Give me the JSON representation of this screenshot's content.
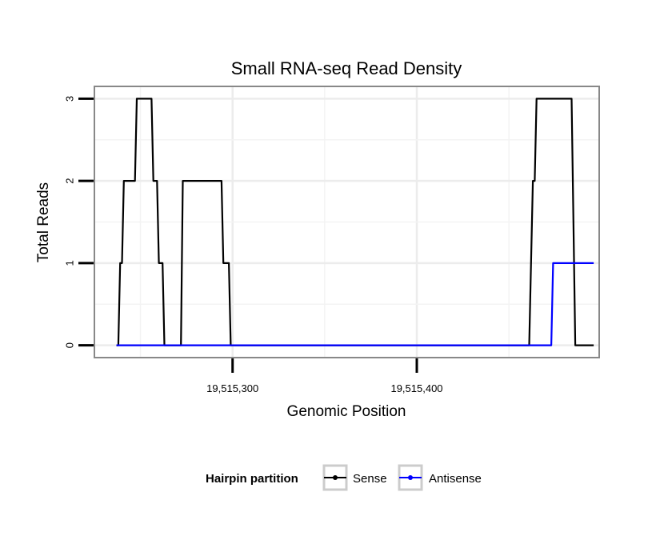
{
  "chart_data": {
    "type": "line",
    "title": "Small RNA-seq Read Density",
    "xlabel": "Genomic Position",
    "ylabel": "Total Reads",
    "xlim": [
      19515225,
      19515499
    ],
    "ylim": [
      -0.15,
      3.15
    ],
    "x_ticks": [
      19515300,
      19515400
    ],
    "x_tick_labels": [
      "19,515,300",
      "19,515,400"
    ],
    "y_ticks": [
      0,
      1,
      2,
      3
    ],
    "y_tick_labels": [
      "0",
      "1",
      "2",
      "3"
    ],
    "grid": true,
    "legend": {
      "title": "Hairpin partition",
      "position": "bottom",
      "entries": [
        {
          "name": "Sense",
          "color": "#000000"
        },
        {
          "name": "Antisense",
          "color": "#0000ff"
        }
      ]
    },
    "series": [
      {
        "name": "Sense",
        "color": "#000000",
        "x": [
          19515237,
          19515238,
          19515239,
          19515240,
          19515241,
          19515243,
          19515244,
          19515247,
          19515248,
          19515256,
          19515257,
          19515259,
          19515260,
          19515262,
          19515263,
          19515272,
          19515273,
          19515294,
          19515295,
          19515298,
          19515299,
          19515461,
          19515463,
          19515464,
          19515465,
          19515484,
          19515486,
          19515496
        ],
        "y": [
          0,
          0,
          1,
          1,
          2,
          2,
          2,
          2,
          3,
          3,
          2,
          2,
          1,
          1,
          0,
          0,
          2,
          2,
          1,
          1,
          0,
          0,
          2,
          2,
          3,
          3,
          0,
          0
        ]
      },
      {
        "name": "Antisense",
        "color": "#0000ff",
        "x": [
          19515237,
          19515473,
          19515474,
          19515496
        ],
        "y": [
          0,
          0,
          1,
          1
        ]
      }
    ]
  }
}
